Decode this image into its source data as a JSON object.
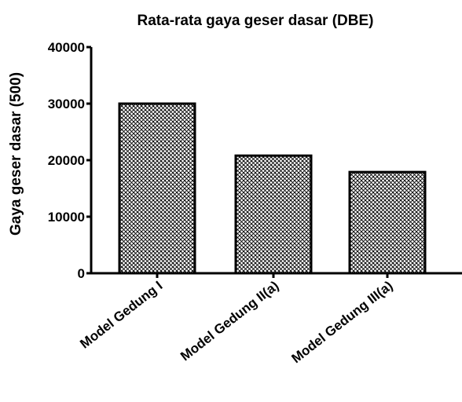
{
  "chart_data": {
    "type": "bar",
    "title": "Rata-rata gaya geser dasar (DBE)",
    "xlabel": "",
    "ylabel": "Gaya geser dasar (500)",
    "categories": [
      "Model Gedung I",
      "Model Gedung II(a)",
      "Model Gedung III(a)"
    ],
    "values": [
      30000,
      20800,
      17900
    ],
    "ylim": [
      0,
      40000
    ],
    "yticks": [
      0,
      10000,
      20000,
      30000,
      40000
    ],
    "ytick_labels": [
      "0",
      "10000",
      "20000",
      "30000",
      "40000"
    ],
    "grid": false,
    "legend": "none",
    "bar_pattern": "crosshatch",
    "colors": {
      "bar_fill": "#ffffff",
      "bar_stroke": "#000000",
      "hatch": "#000000"
    }
  }
}
